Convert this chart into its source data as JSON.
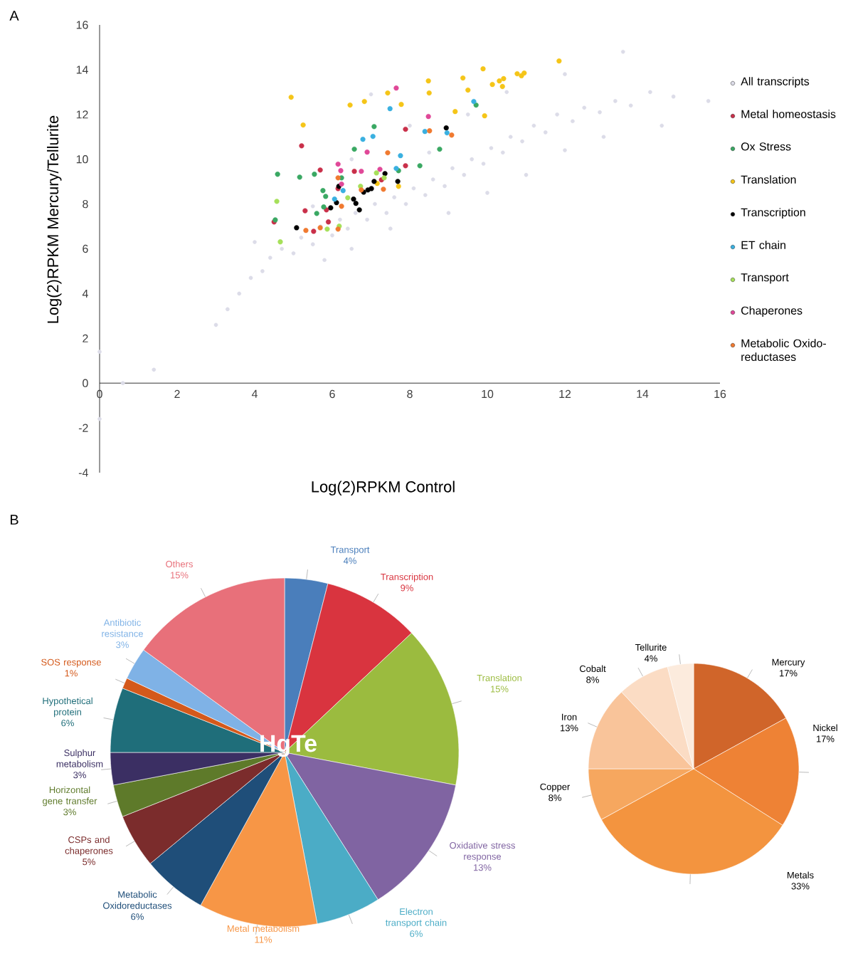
{
  "chart_data": [
    {
      "type": "scatter",
      "xlabel": "Log(2)RPKM Control",
      "ylabel": "Log(2)RPKM Mercury/Tellurite",
      "xlim": [
        0,
        16
      ],
      "ylim": [
        -4,
        16
      ],
      "xticks": [
        0,
        2,
        4,
        6,
        8,
        10,
        12,
        14,
        16
      ],
      "yticks": [
        -4,
        -2,
        0,
        2,
        4,
        6,
        8,
        10,
        12,
        14,
        16
      ],
      "marker": "circle",
      "legend": "right",
      "annotations": [
        "A"
      ],
      "series": [
        {
          "name": "All transcripts",
          "color": "#dcdce8",
          "x": [
            3.0,
            3.3,
            3.6,
            3.9,
            4.2,
            4.4,
            4.7,
            5.0,
            5.2,
            5.5,
            5.7,
            6.0,
            6.2,
            6.4,
            6.6,
            6.9,
            7.1,
            7.4,
            7.6,
            7.9,
            8.1,
            8.4,
            8.6,
            8.9,
            9.1,
            9.4,
            9.6,
            9.9,
            10.1,
            10.4,
            10.6,
            10.9,
            11.2,
            11.5,
            11.8,
            12.2,
            12.5,
            12.9,
            13.3,
            13.7,
            14.2,
            14.8,
            15.7,
            13.5,
            12.0,
            10.5,
            9.5,
            8.0,
            7.0,
            6.5,
            5.5,
            4.0,
            8.5,
            9.0,
            10.0,
            11.0,
            12.0,
            13.0,
            14.5,
            1.4,
            0.6,
            0.0,
            0.0,
            7.5,
            6.5,
            5.8
          ],
          "values": [
            2.6,
            3.3,
            4.0,
            4.7,
            5.0,
            5.6,
            6.0,
            5.8,
            6.5,
            6.2,
            7.0,
            6.6,
            7.3,
            6.9,
            7.6,
            7.3,
            8.0,
            7.6,
            8.3,
            8.0,
            8.7,
            8.4,
            9.1,
            8.8,
            9.6,
            9.3,
            10.0,
            9.8,
            10.5,
            10.3,
            11.0,
            10.8,
            11.5,
            11.2,
            12.0,
            11.7,
            12.3,
            12.1,
            12.6,
            12.4,
            13.0,
            12.8,
            12.6,
            14.8,
            13.8,
            13.0,
            12.0,
            11.5,
            12.9,
            10.0,
            7.9,
            6.3,
            10.3,
            7.6,
            8.5,
            9.3,
            10.4,
            11.0,
            11.5,
            0.6,
            0.0,
            1.4,
            -1.6,
            6.9,
            6.0,
            5.5
          ]
        },
        {
          "name": "Metal homeostasis",
          "color": "#c9304a",
          "x": [
            4.5,
            5.21,
            5.3,
            5.69,
            5.85,
            5.52,
            5.9,
            7.89,
            7.89,
            7.27,
            6.15,
            6.57
          ],
          "values": [
            7.2,
            10.6,
            7.7,
            9.52,
            7.74,
            6.78,
            7.2,
            11.34,
            9.71,
            9.08,
            8.69,
            9.46
          ]
        },
        {
          "name": "Ox Stress",
          "color": "#3aa863",
          "x": [
            4.59,
            5.16,
            5.54,
            6.57,
            7.08,
            9.71,
            8.77,
            8.26,
            5.76,
            5.83,
            5.6,
            5.78,
            4.53,
            6.24,
            7.71
          ],
          "values": [
            9.33,
            9.2,
            9.33,
            10.45,
            11.46,
            12.42,
            10.45,
            9.71,
            8.6,
            8.34,
            7.58,
            7.87,
            7.29,
            9.17,
            9.49
          ]
        },
        {
          "name": "Translation",
          "color": "#f5c518",
          "x": [
            4.94,
            5.25,
            6.46,
            6.83,
            7.43,
            7.78,
            8.48,
            8.5,
            9.17,
            9.37,
            9.5,
            9.89,
            9.93,
            10.13,
            10.31,
            10.39,
            10.42,
            10.77,
            10.88,
            10.95,
            11.85,
            7.16,
            7.71
          ],
          "values": [
            12.77,
            11.53,
            12.42,
            12.58,
            12.96,
            12.45,
            13.5,
            12.96,
            12.13,
            13.63,
            13.09,
            14.04,
            11.94,
            13.34,
            13.5,
            13.25,
            13.6,
            13.82,
            13.73,
            13.85,
            14.39,
            8.92,
            8.79
          ]
        },
        {
          "name": "Transcription",
          "color": "#000000",
          "x": [
            5.08,
            5.96,
            6.11,
            6.7,
            6.61,
            6.92,
            7.01,
            7.08,
            7.36,
            7.69,
            8.94,
            6.17,
            6.81,
            6.55
          ],
          "values": [
            6.94,
            7.83,
            8.06,
            7.74,
            8.03,
            8.63,
            8.69,
            9.01,
            9.36,
            9.01,
            11.4,
            8.79,
            8.53,
            8.22
          ]
        },
        {
          "name": "ET chain",
          "color": "#3ab0e0",
          "x": [
            7.49,
            7.05,
            6.79,
            8.39,
            9.65,
            8.96,
            7.76,
            6.28,
            6.06,
            7.65
          ],
          "values": [
            12.26,
            11.02,
            10.89,
            11.24,
            12.58,
            11.18,
            10.16,
            8.6,
            8.22,
            9.59
          ]
        },
        {
          "name": "Transport",
          "color": "#a6e05a",
          "x": [
            4.57,
            4.66,
            6.18,
            6.73,
            6.4,
            7.34,
            5.87,
            7.14
          ],
          "values": [
            8.12,
            6.31,
            7.01,
            8.79,
            8.28,
            9.17,
            6.88,
            9.39
          ]
        },
        {
          "name": "Chaperones",
          "color": "#e04898",
          "x": [
            7.65,
            7.23,
            6.15,
            6.22,
            6.9,
            8.48,
            6.24,
            6.75
          ],
          "values": [
            13.18,
            9.55,
            9.78,
            9.49,
            10.32,
            11.91,
            8.89,
            9.46
          ]
        },
        {
          "name": "Metabolic Oxido-reductases",
          "color": "#f07a30",
          "x": [
            5.32,
            8.51,
            9.08,
            7.43,
            6.15,
            6.24,
            6.75,
            7.32,
            6.15,
            5.69
          ],
          "values": [
            6.82,
            11.27,
            11.08,
            10.29,
            9.17,
            7.9,
            8.63,
            8.66,
            6.88,
            6.94
          ]
        }
      ]
    },
    {
      "type": "pie",
      "title": "HgTe",
      "annotations": [
        "B"
      ],
      "categories": [
        "Transport",
        "Transcription",
        "Translation",
        "Oxidative stress response",
        "Electron transport chain",
        "Metal metabolism",
        "Metabolic Oxidoreductases",
        "CSPs and chaperones",
        "Horizontal gene transfer",
        "Sulphur metabolism",
        "Hypothetical protein",
        "SOS response",
        "Antibiotic resistance",
        "Others"
      ],
      "values": [
        4,
        9,
        15,
        13,
        6,
        11,
        6,
        5,
        3,
        3,
        6,
        1,
        3,
        15
      ],
      "value_labels": [
        "4%",
        "9%",
        "15%",
        "13%",
        "6%",
        "11%",
        "6%",
        "5%",
        "3%",
        "3%",
        "6%",
        "1%",
        "3%",
        "15%"
      ],
      "colors": [
        "#4a7ebb",
        "#d9343f",
        "#9bbb3f",
        "#8064a2",
        "#4bacc6",
        "#f79646",
        "#1f4e79",
        "#7b2c2c",
        "#5e7a2a",
        "#3b2f63",
        "#1f6e7a",
        "#d4591b",
        "#7fb2e6",
        "#e8707a"
      ]
    },
    {
      "type": "pie",
      "categories": [
        "Mercury",
        "Nickel",
        "Metals",
        "Copper",
        "Iron",
        "Cobalt",
        "Tellurite"
      ],
      "values": [
        17,
        17,
        33,
        8,
        13,
        8,
        4
      ],
      "value_labels": [
        "17%",
        "17%",
        "33%",
        "8%",
        "13%",
        "8%",
        "4%"
      ],
      "colors": [
        "#d0652a",
        "#ee8235",
        "#f3943f",
        "#f6a75f",
        "#f9c49a",
        "#fbdcc4",
        "#fcebdd"
      ]
    }
  ]
}
